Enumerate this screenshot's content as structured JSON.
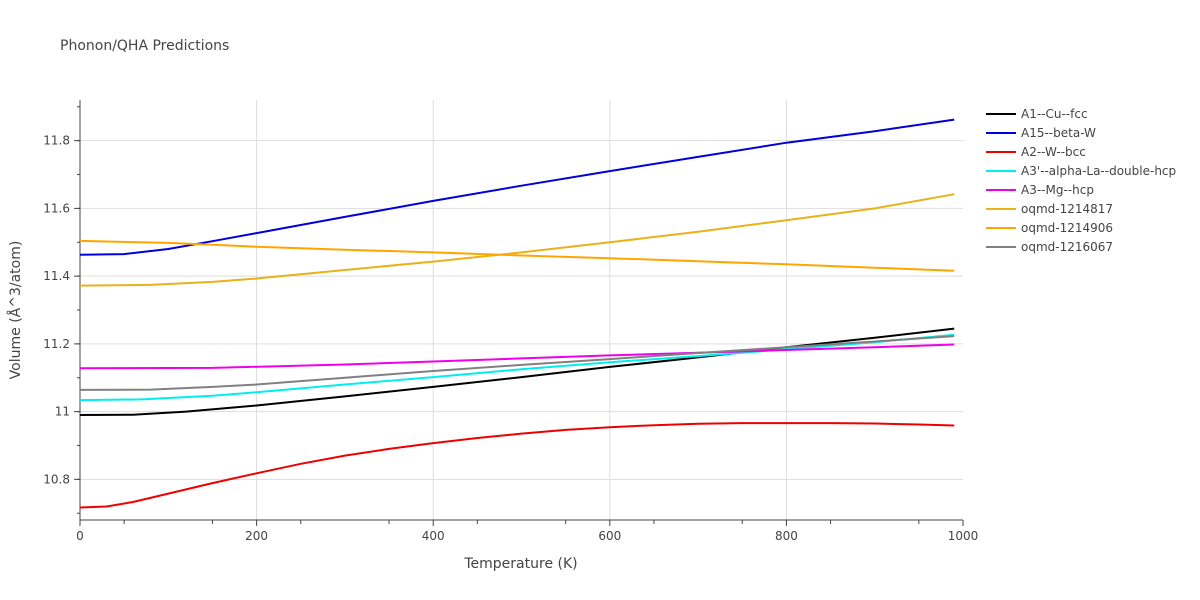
{
  "chart_data": {
    "type": "line",
    "title": "Phonon/QHA Predictions",
    "xlabel": "Temperature (K)",
    "ylabel": "Volume (Å^3/atom)",
    "xlim": [
      0,
      1000
    ],
    "ylim": [
      10.68,
      11.92
    ],
    "xticks": [
      0,
      200,
      400,
      600,
      800,
      1000
    ],
    "yticks": [
      10.8,
      11,
      11.2,
      11.4,
      11.6,
      11.8
    ],
    "ytick_labels": [
      "10.8",
      "11",
      "11.2",
      "11.4",
      "11.6",
      "11.8"
    ],
    "grid": true,
    "legend_position": "right",
    "series": [
      {
        "name": "A1--Cu--fcc",
        "color": "#000000",
        "x": [
          0,
          60,
          120,
          200,
          300,
          400,
          500,
          600,
          700,
          800,
          900,
          990
        ],
        "y": [
          10.99,
          10.991,
          11.0,
          11.018,
          11.045,
          11.073,
          11.102,
          11.132,
          11.16,
          11.19,
          11.218,
          11.245
        ]
      },
      {
        "name": "A15--beta-W",
        "color": "#0000dd",
        "x": [
          0,
          50,
          100,
          150,
          200,
          300,
          400,
          500,
          600,
          700,
          800,
          900,
          990
        ],
        "y": [
          11.463,
          11.465,
          11.48,
          11.503,
          11.527,
          11.575,
          11.622,
          11.667,
          11.71,
          11.752,
          11.794,
          11.828,
          11.862
        ]
      },
      {
        "name": "A2--W--bcc",
        "color": "#ee0000",
        "x": [
          0,
          30,
          60,
          100,
          150,
          200,
          250,
          300,
          350,
          400,
          450,
          500,
          550,
          600,
          650,
          700,
          750,
          800,
          850,
          900,
          950,
          990
        ],
        "y": [
          10.717,
          10.72,
          10.733,
          10.758,
          10.789,
          10.818,
          10.846,
          10.87,
          10.89,
          10.907,
          10.922,
          10.935,
          10.946,
          10.954,
          10.96,
          10.964,
          10.966,
          10.966,
          10.966,
          10.965,
          10.962,
          10.959
        ]
      },
      {
        "name": "A3'--alpha-La--double-hcp",
        "color": "#00eeee",
        "x": [
          0,
          70,
          150,
          200,
          300,
          400,
          500,
          600,
          700,
          800,
          900,
          990
        ],
        "y": [
          11.034,
          11.036,
          11.047,
          11.057,
          11.08,
          11.102,
          11.125,
          11.146,
          11.164,
          11.184,
          11.205,
          11.227
        ]
      },
      {
        "name": "A3--Mg--hcp",
        "color": "#ee00ee",
        "x": [
          0,
          150,
          300,
          400,
          500,
          600,
          700,
          800,
          900,
          990
        ],
        "y": [
          11.128,
          11.129,
          11.139,
          11.148,
          11.157,
          11.166,
          11.174,
          11.182,
          11.19,
          11.198
        ]
      },
      {
        "name": "oqmd-1214817",
        "color": "#e8b21a",
        "x": [
          0,
          80,
          150,
          200,
          300,
          400,
          500,
          600,
          700,
          800,
          900,
          990
        ],
        "y": [
          11.372,
          11.374,
          11.383,
          11.393,
          11.418,
          11.443,
          11.47,
          11.5,
          11.531,
          11.565,
          11.6,
          11.642
        ]
      },
      {
        "name": "oqmd-1214906",
        "color": "#ffa500",
        "x": [
          0,
          100,
          200,
          300,
          400,
          500,
          600,
          700,
          800,
          900,
          990
        ],
        "y": [
          11.504,
          11.498,
          11.487,
          11.478,
          11.47,
          11.461,
          11.453,
          11.444,
          11.435,
          11.425,
          11.416
        ]
      },
      {
        "name": "oqmd-1216067",
        "color": "#808080",
        "x": [
          0,
          80,
          150,
          200,
          300,
          400,
          500,
          600,
          700,
          800,
          900,
          990
        ],
        "y": [
          11.064,
          11.065,
          11.073,
          11.08,
          11.1,
          11.12,
          11.138,
          11.155,
          11.173,
          11.19,
          11.207,
          11.223
        ]
      }
    ]
  }
}
